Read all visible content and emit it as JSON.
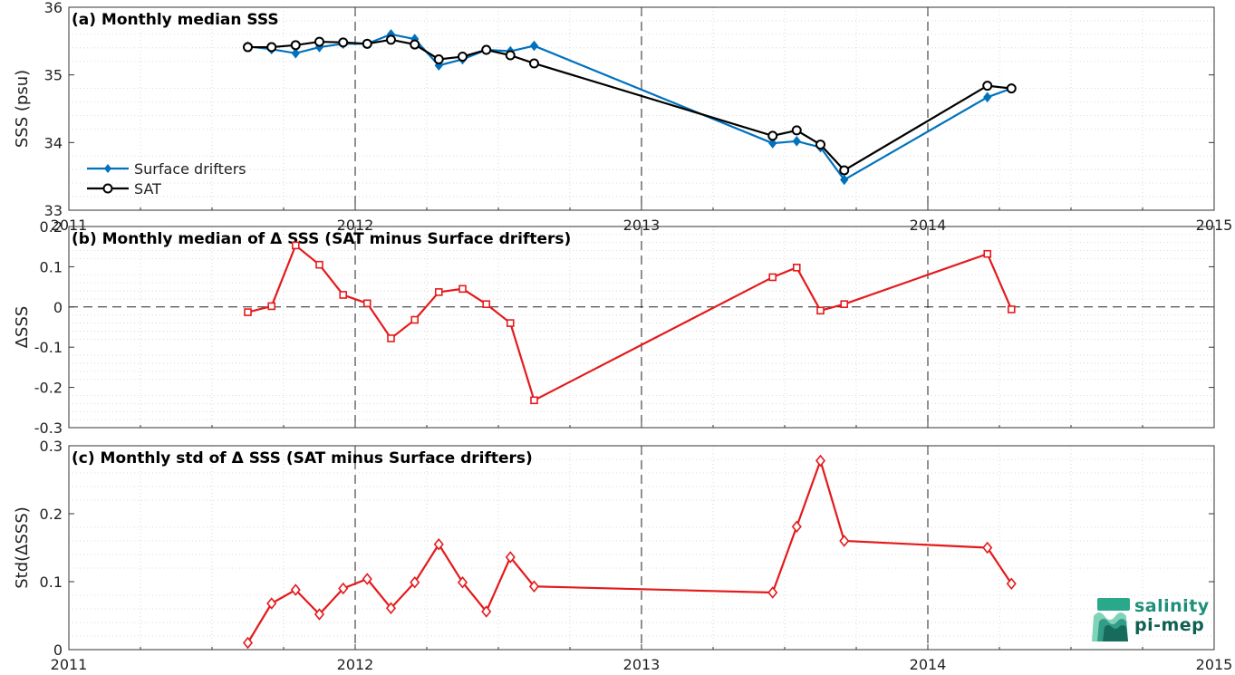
{
  "chart_data": [
    {
      "type": "line",
      "title": "(a) Monthly median SSS",
      "ylabel": "SSS (psu)",
      "ylim": [
        33,
        36
      ],
      "yticks": [
        33,
        34,
        35,
        36
      ],
      "xlim": [
        2011,
        2015
      ],
      "xticks": [
        "2011",
        "2012",
        "2013",
        "2014",
        "2015"
      ],
      "grid": true,
      "legend": "left",
      "series": [
        {
          "name": "Surface drifters",
          "color": "#0072bd",
          "marker": "filled-diamond",
          "x": [
            2011.625,
            2011.708,
            2011.792,
            2011.875,
            2011.958,
            2012.042,
            2012.125,
            2012.208,
            2012.292,
            2012.375,
            2012.458,
            2012.542,
            2012.625,
            2013.458,
            2013.542,
            2013.625,
            2013.708,
            2014.208,
            2014.292
          ],
          "y": [
            35.42,
            35.38,
            35.32,
            35.41,
            35.46,
            35.46,
            35.6,
            35.53,
            35.14,
            35.23,
            35.37,
            35.35,
            35.43,
            33.99,
            34.02,
            33.93,
            33.45,
            34.67,
            34.8
          ]
        },
        {
          "name": "SAT",
          "color": "#000000",
          "marker": "open-circle",
          "x": [
            2011.625,
            2011.708,
            2011.792,
            2011.875,
            2011.958,
            2012.042,
            2012.125,
            2012.208,
            2012.292,
            2012.375,
            2012.458,
            2012.542,
            2012.625,
            2013.458,
            2013.542,
            2013.625,
            2013.708,
            2014.208,
            2014.292
          ],
          "y": [
            35.41,
            35.41,
            35.44,
            35.49,
            35.48,
            35.46,
            35.52,
            35.45,
            35.23,
            35.27,
            35.37,
            35.29,
            35.17,
            34.1,
            34.18,
            33.97,
            33.59,
            34.84,
            34.8
          ]
        }
      ]
    },
    {
      "type": "line",
      "title": "(b) Monthly median of Δ SSS (SAT minus Surface drifters)",
      "ylabel": "ΔSSS",
      "ylim": [
        -0.3,
        0.2
      ],
      "yticks": [
        -0.3,
        -0.2,
        -0.1,
        0,
        0.1,
        0.2
      ],
      "ytick_labels": [
        "-0.3",
        "-0.2",
        "-0.1",
        "0",
        "0.1",
        "0.2"
      ],
      "xlim": [
        2011,
        2015
      ],
      "grid": true,
      "reference_line": 0,
      "series": [
        {
          "color": "#e41a1c",
          "marker": "open-square",
          "x": [
            2011.625,
            2011.708,
            2011.792,
            2011.875,
            2011.958,
            2012.042,
            2012.125,
            2012.208,
            2012.292,
            2012.375,
            2012.458,
            2012.542,
            2012.625,
            2013.458,
            2013.542,
            2013.625,
            2013.708,
            2014.208,
            2014.292
          ],
          "y": [
            -0.013,
            0.002,
            0.153,
            0.105,
            0.03,
            0.009,
            -0.078,
            -0.032,
            0.037,
            0.045,
            0.007,
            -0.04,
            -0.232,
            0.074,
            0.098,
            -0.009,
            0.007,
            0.132,
            -0.006
          ]
        }
      ]
    },
    {
      "type": "line",
      "title": "(c) Monthly std of Δ SSS (SAT minus Surface drifters)",
      "ylabel": "Std(ΔSSS)",
      "ylim": [
        0,
        0.3
      ],
      "yticks": [
        0,
        0.1,
        0.2,
        0.3
      ],
      "ytick_labels": [
        "0",
        "0.1",
        "0.2",
        "0.3"
      ],
      "xlim": [
        2011,
        2015
      ],
      "xticks": [
        "2011",
        "2012",
        "2013",
        "2014",
        "2015"
      ],
      "grid": true,
      "series": [
        {
          "color": "#e41a1c",
          "marker": "open-diamond",
          "x": [
            2011.625,
            2011.708,
            2011.792,
            2011.875,
            2011.958,
            2012.042,
            2012.125,
            2012.208,
            2012.292,
            2012.375,
            2012.458,
            2012.542,
            2012.625,
            2013.458,
            2013.542,
            2013.625,
            2013.708,
            2014.208,
            2014.292
          ],
          "y": [
            0.01,
            0.068,
            0.088,
            0.052,
            0.09,
            0.104,
            0.061,
            0.099,
            0.155,
            0.099,
            0.056,
            0.136,
            0.093,
            0.084,
            0.181,
            0.278,
            0.16,
            0.15,
            0.097
          ]
        }
      ]
    }
  ],
  "logo": {
    "line1": "salinity",
    "line2": "pi-mep",
    "colors": [
      "#2aa98a",
      "#1f8f7a",
      "#0f5f52",
      "#7fd3b8"
    ]
  }
}
